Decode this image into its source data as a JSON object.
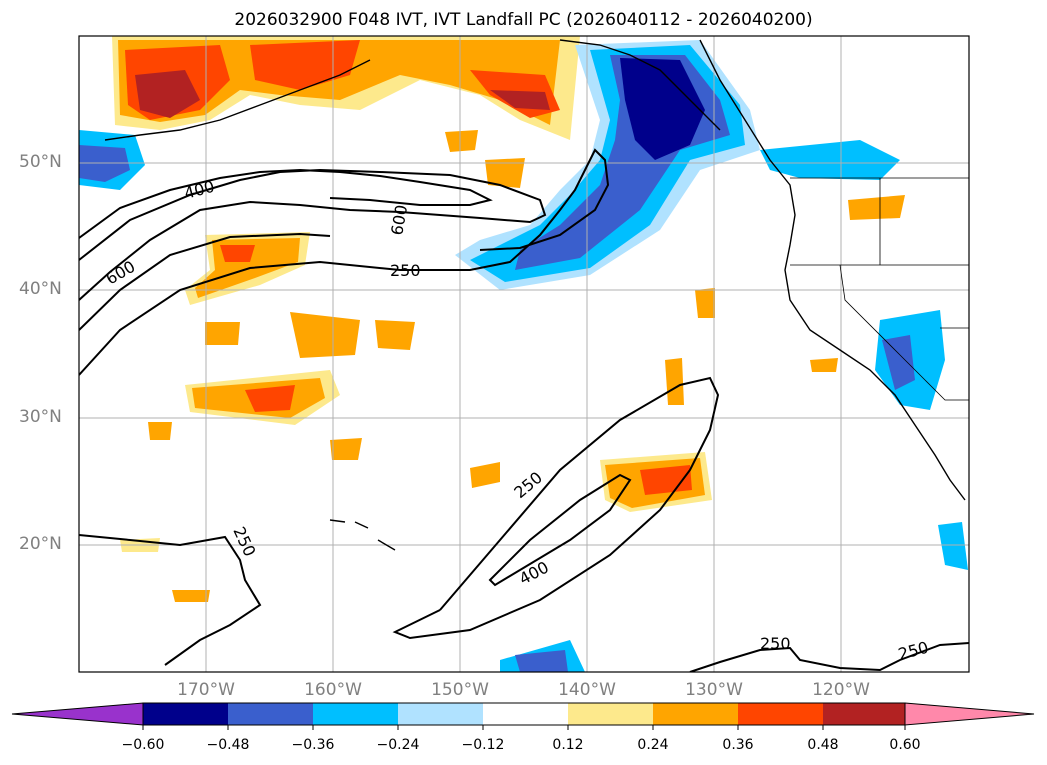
{
  "title": "2026032900 F048 IVT, IVT Landfall PC (2026040112 - 2026040200)",
  "lat_labels": [
    "50°N",
    "40°N",
    "30°N",
    "20°N"
  ],
  "lon_labels": [
    "170°W",
    "160°W",
    "150°W",
    "140°W",
    "130°W",
    "120°W"
  ],
  "contour_labels": [
    "400",
    "600",
    "600",
    "250",
    "250",
    "400",
    "250",
    "250",
    "250"
  ],
  "colorbar": {
    "ticks": [
      "−0.60",
      "−0.48",
      "−0.36",
      "−0.24",
      "−0.12",
      "0.12",
      "0.24",
      "0.36",
      "0.48",
      "0.60"
    ],
    "colors": [
      "#9932cc",
      "#00008b",
      "#3a5fcd",
      "#00bfff",
      "#b0e2ff",
      "#ffffff",
      "#fde98c",
      "#ffa500",
      "#ff4500",
      "#b22222",
      "#ff88aa"
    ]
  },
  "map_extent": {
    "lon": [
      -180,
      -110
    ],
    "lat": [
      10,
      60
    ]
  },
  "colors": {
    "grid": "#b0b0b0",
    "contour": "#000000",
    "coast": "#000000"
  }
}
